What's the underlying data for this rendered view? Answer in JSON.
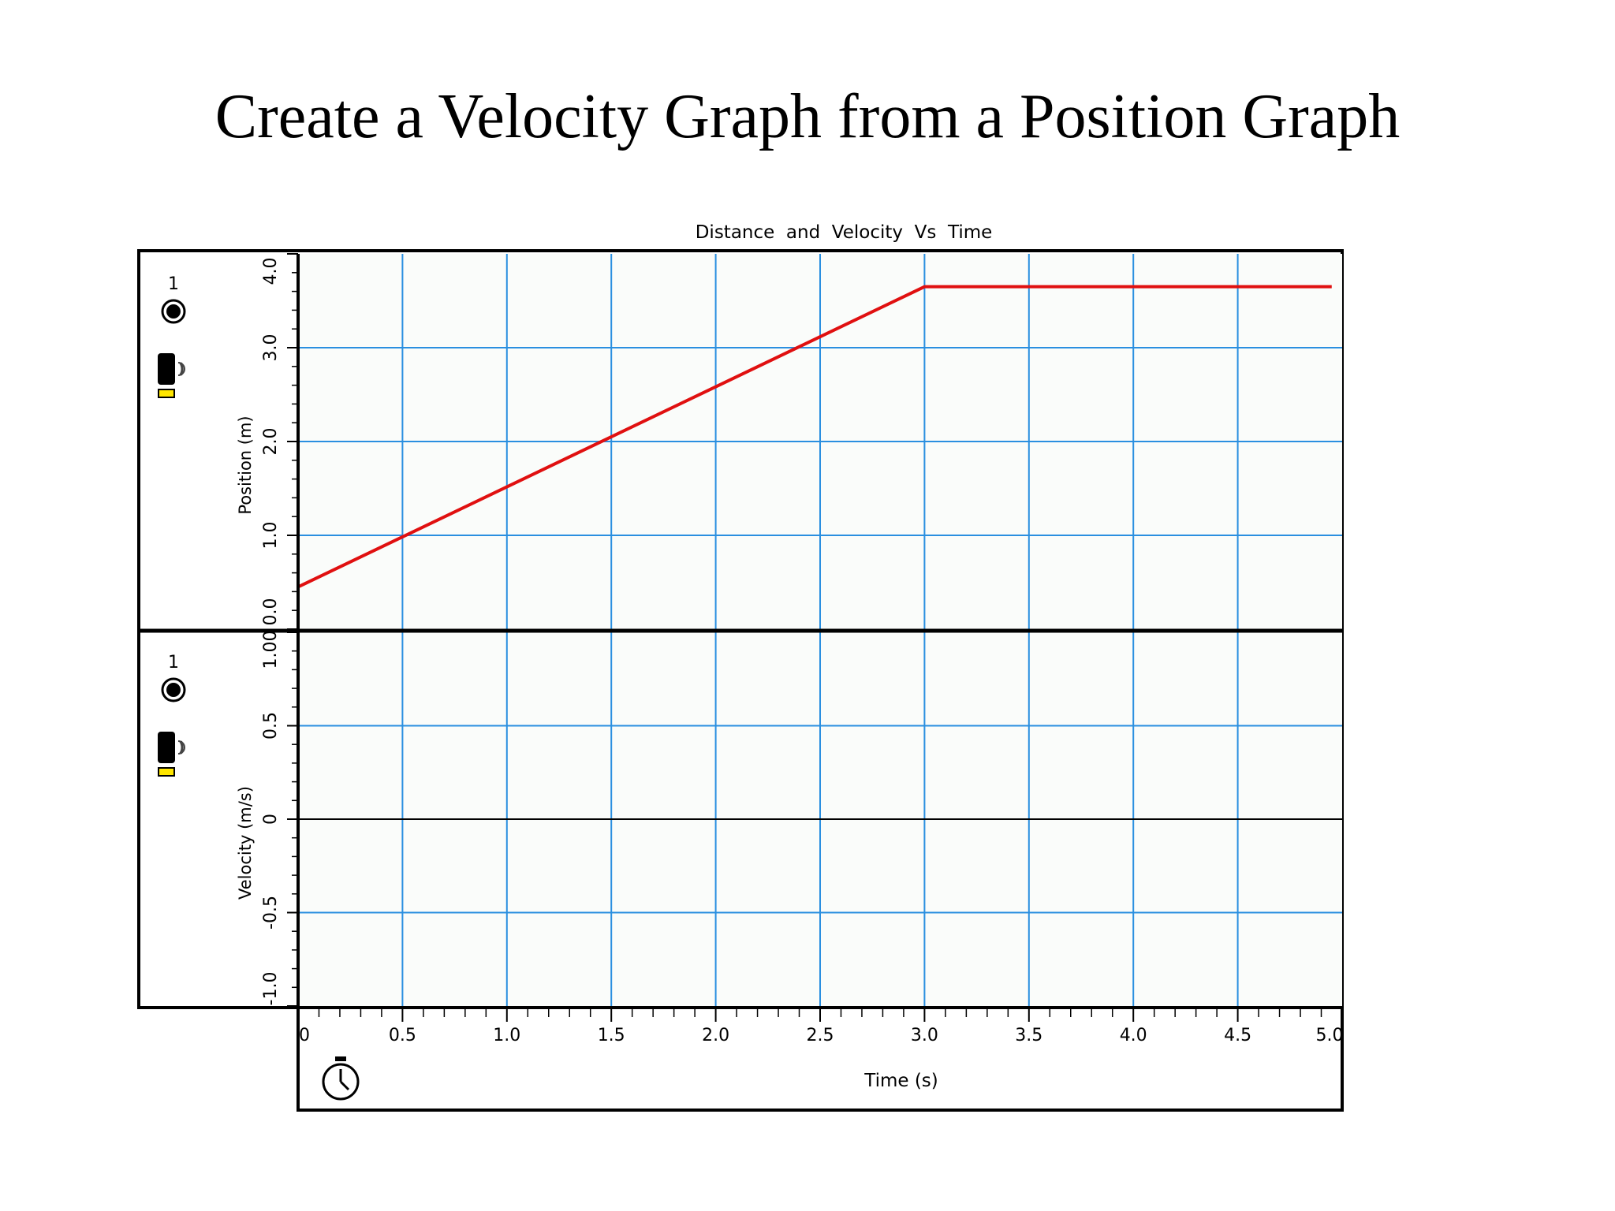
{
  "slide": {
    "title": "Create a Velocity Graph from a Position Graph"
  },
  "colors": {
    "grid": "#2a8fe0",
    "series": "#e01010",
    "frame": "#000000",
    "panel_bg": "#fafcfa",
    "sensor_yellow": "#ffe600"
  },
  "icons": {
    "probe_dot": "circle-dot-icon",
    "motion_sensor": "motion-sensor-icon",
    "stopwatch": "stopwatch-icon"
  },
  "chart_data": {
    "type": "line",
    "title": "Distance  and  Velocity  Vs  Time",
    "xlabel": "Time (s)",
    "xlim": [
      0,
      5.0
    ],
    "x_ticks": [
      "0",
      "0.5",
      "1.0",
      "1.5",
      "2.0",
      "2.5",
      "3.0",
      "3.5",
      "4.0",
      "4.5",
      "5.0"
    ],
    "grid": true,
    "panels": [
      {
        "ylabel": "Position (m)",
        "ylim": [
          0,
          4.0
        ],
        "y_ticks": [
          "0.0",
          "1.0",
          "2.0",
          "3.0",
          "4.0"
        ],
        "probe_label": "1",
        "series": [
          {
            "x": [
              0,
              3.0,
              4.95
            ],
            "y": [
              0.45,
              3.65,
              3.65
            ]
          }
        ]
      },
      {
        "ylabel": "Velocity (m/s)",
        "ylim": [
          -1.0,
          1.0
        ],
        "y_ticks": [
          "-1.0",
          "-0.5",
          "0",
          "0.5",
          "1.00"
        ],
        "probe_label": "1",
        "zero_line": true,
        "series": []
      }
    ]
  }
}
